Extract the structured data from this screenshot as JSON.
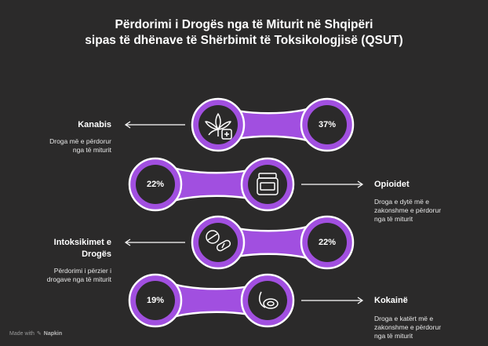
{
  "title": {
    "line1": "Përdorimi i Drogës nga të Miturit në Shqipëri",
    "line2": "sipas të dhënave të Shërbimit të Toksikologjisë (QSUT)"
  },
  "items": [
    {
      "name": "Kanabis",
      "description_lines": [
        "Droga më e përdorur",
        "nga të miturit"
      ],
      "percent": "37%",
      "icon": "cannabis-leaf-medical-cross-icon"
    },
    {
      "name": "Opioidet",
      "description_lines": [
        "Droga e dytë më e",
        "zakonshme e përdorur",
        "nga të miturit"
      ],
      "percent": "22%",
      "icon": "pill-bottle-icon"
    },
    {
      "name_lines": [
        "Intoksikimet e",
        "Drogës"
      ],
      "description_lines": [
        "Përdorimi i përzier i",
        "drogave nga të miturit"
      ],
      "percent": "22%",
      "icon": "pills-capsules-icon"
    },
    {
      "name": "Kokainë",
      "description_lines": [
        "Droga e katërt më e",
        "zakonshme e përdorur",
        "nga të miturit"
      ],
      "percent": "19%",
      "icon": "cocaine-powder-icon"
    }
  ],
  "footer": {
    "made_with": "Made with",
    "brand": "Napkin"
  },
  "colors": {
    "accent": "#a14fe0",
    "ring": "#ffffff",
    "background": "#2b2a2a",
    "circle_fill": "#2b2a2a"
  }
}
